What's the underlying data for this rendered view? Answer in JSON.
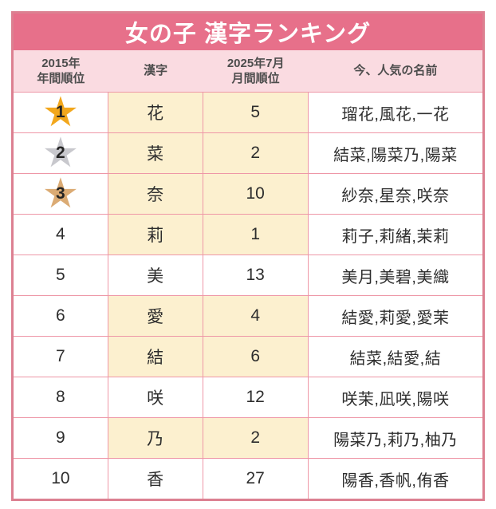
{
  "title": "女の子 漢字ランキング",
  "header": {
    "annual_rank_line1": "2015年",
    "annual_rank_line2": "年間順位",
    "kanji": "漢字",
    "monthly_rank_line1": "2025年7月",
    "monthly_rank_line2": "月間順位",
    "popular_names": "今、人気の名前"
  },
  "rows": [
    {
      "rank": "1",
      "medal": "gold",
      "kanji": "花",
      "monthly_rank": "5",
      "names": "瑠花,風花,一花",
      "highlight": true
    },
    {
      "rank": "2",
      "medal": "silver",
      "kanji": "菜",
      "monthly_rank": "2",
      "names": "結菜,陽菜乃,陽菜",
      "highlight": true
    },
    {
      "rank": "3",
      "medal": "bronze",
      "kanji": "奈",
      "monthly_rank": "10",
      "names": "紗奈,星奈,咲奈",
      "highlight": true
    },
    {
      "rank": "4",
      "medal": null,
      "kanji": "莉",
      "monthly_rank": "1",
      "names": "莉子,莉緒,茉莉",
      "highlight": true
    },
    {
      "rank": "5",
      "medal": null,
      "kanji": "美",
      "monthly_rank": "13",
      "names": "美月,美碧,美織",
      "highlight": false
    },
    {
      "rank": "6",
      "medal": null,
      "kanji": "愛",
      "monthly_rank": "4",
      "names": "結愛,莉愛,愛茉",
      "highlight": true
    },
    {
      "rank": "7",
      "medal": null,
      "kanji": "結",
      "monthly_rank": "6",
      "names": "結菜,結愛,結",
      "highlight": true
    },
    {
      "rank": "8",
      "medal": null,
      "kanji": "咲",
      "monthly_rank": "12",
      "names": "咲茉,凪咲,陽咲",
      "highlight": false
    },
    {
      "rank": "9",
      "medal": null,
      "kanji": "乃",
      "monthly_rank": "2",
      "names": "陽菜乃,莉乃,柚乃",
      "highlight": true
    },
    {
      "rank": "10",
      "medal": null,
      "kanji": "香",
      "monthly_rank": "27",
      "names": "陽香,香帆,侑香",
      "highlight": false
    }
  ],
  "icons": {
    "star_glyph": "★"
  },
  "colors": {
    "title_bar_bg": "#e7708a",
    "title_text": "#ffffff",
    "outer_border": "#dc8091",
    "grid_line": "#ee97a7",
    "header_bg": "#fadbe1",
    "header_text": "#4d4d4d",
    "body_text": "#2d2d2d",
    "highlight_cell_bg": "#fcf0cf",
    "gold_star": "#f2a71c",
    "silver_star": "#c8c8cd",
    "bronze_star": "#dbab74"
  },
  "chart_data": {
    "type": "table",
    "title": "女の子 漢字ランキング",
    "columns": [
      "2015年 年間順位",
      "漢字",
      "2025年7月 月間順位",
      "今、人気の名前"
    ],
    "rows": [
      [
        "1",
        "花",
        "5",
        "瑠花,風花,一花"
      ],
      [
        "2",
        "菜",
        "2",
        "結菜,陽菜乃,陽菜"
      ],
      [
        "3",
        "奈",
        "10",
        "紗奈,星奈,咲奈"
      ],
      [
        "4",
        "莉",
        "1",
        "莉子,莉緒,茉莉"
      ],
      [
        "5",
        "美",
        "13",
        "美月,美碧,美織"
      ],
      [
        "6",
        "愛",
        "4",
        "結愛,莉愛,愛茉"
      ],
      [
        "7",
        "結",
        "6",
        "結菜,結愛,結"
      ],
      [
        "8",
        "咲",
        "12",
        "咲茉,凪咲,陽咲"
      ],
      [
        "9",
        "乃",
        "2",
        "陽菜乃,莉乃,柚乃"
      ],
      [
        "10",
        "香",
        "27",
        "陽香,香帆,侑香"
      ]
    ],
    "highlighted_rows_kanji_and_monthly_rank": [
      1,
      2,
      3,
      4,
      6,
      7,
      9
    ],
    "legend_hint": "kanji/monthly-rank cells highlighted cream when 2025年7月 rank is within top 10",
    "medals": {
      "1": "gold",
      "2": "silver",
      "3": "bronze"
    }
  }
}
